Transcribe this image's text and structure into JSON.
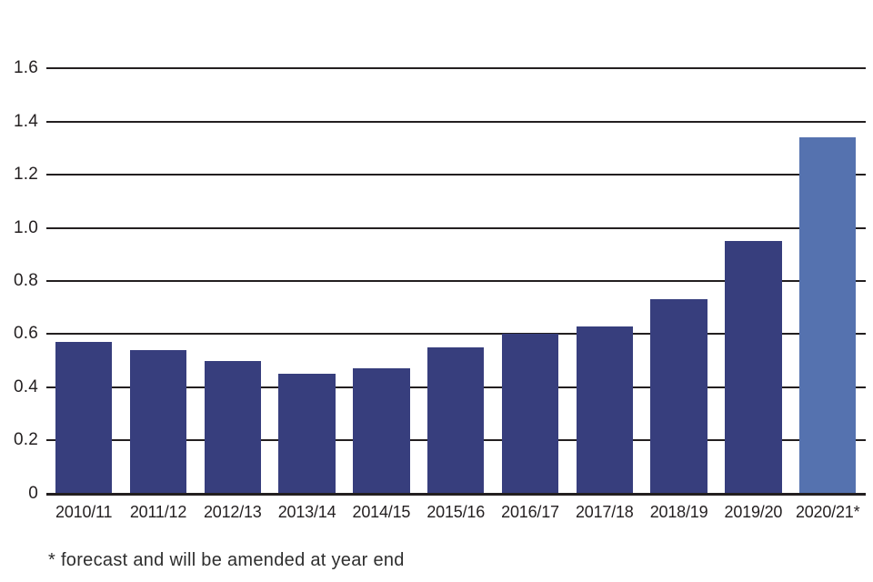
{
  "chart_data": {
    "type": "bar",
    "categories": [
      "2010/11",
      "2011/12",
      "2012/13",
      "2013/14",
      "2014/15",
      "2015/16",
      "2016/17",
      "2017/18",
      "2018/19",
      "2019/20",
      "2020/21*"
    ],
    "values": [
      0.57,
      0.54,
      0.5,
      0.45,
      0.47,
      0.55,
      0.6,
      0.63,
      0.73,
      0.95,
      1.34
    ],
    "title": "",
    "xlabel": "",
    "ylabel": "",
    "ylim": [
      0,
      1.6
    ],
    "ytick_labels": [
      "0",
      "0.2",
      "0.4",
      "0.6",
      "0.8",
      "1.0",
      "1.2",
      "1.4",
      "1.6"
    ],
    "grid": true,
    "legend_position": "none",
    "forecast_index": 10
  },
  "colors": {
    "bar": "#373E7D",
    "bar_forecast": "#5572AF",
    "axis": "#231F20",
    "text": "#231F20"
  },
  "footnote": "* forecast and will be amended at year end"
}
